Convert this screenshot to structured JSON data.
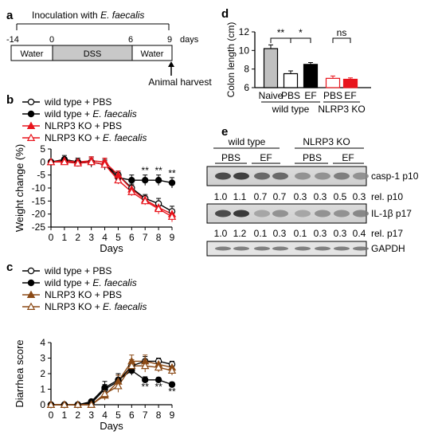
{
  "panels": [
    "a",
    "b",
    "c",
    "d",
    "e"
  ],
  "panel_a": {
    "inoculation": "Inoculation with ",
    "species": "E. faecalis",
    "timeline_ticks": [
      "-14",
      "0",
      "6",
      "9"
    ],
    "days_label": "days",
    "segments": [
      "Water",
      "DSS",
      "Water"
    ],
    "harvest": "Animal harvest"
  },
  "legend_b": [
    {
      "label": "wild type + PBS",
      "pre": "wild type + ",
      "ital": "",
      "post": "PBS",
      "color": "#000000",
      "marker": "open-circle"
    },
    {
      "label": "wild type + E. faecalis",
      "pre": "wild type + ",
      "ital": "E. faecalis",
      "post": "",
      "color": "#000000",
      "marker": "filled-circle"
    },
    {
      "label": "NLRP3 KO + PBS",
      "pre": "NLRP3 KO + ",
      "ital": "",
      "post": "PBS",
      "color": "#e8141c",
      "marker": "filled-triangle"
    },
    {
      "label": "NLRP3 KO + E. faecalis",
      "pre": "NLRP3 KO + ",
      "ital": "E. faecalis",
      "post": "",
      "color": "#e8141c",
      "marker": "open-triangle"
    }
  ],
  "legend_c": [
    {
      "label": "wild type + PBS",
      "pre": "wild type + ",
      "ital": "",
      "post": "PBS",
      "color": "#000000",
      "marker": "open-circle"
    },
    {
      "label": "wild type + E. faecalis",
      "pre": "wild type + ",
      "ital": "E. faecalis",
      "post": "",
      "color": "#000000",
      "marker": "filled-circle"
    },
    {
      "label": "NLRP3 KO + PBS",
      "pre": "NLRP3 KO + ",
      "ital": "",
      "post": "PBS",
      "color": "#8b4a16",
      "marker": "filled-triangle"
    },
    {
      "label": "NLRP3 KO + E. faecalis",
      "pre": "NLRP3 KO + ",
      "ital": "E. faecalis",
      "post": "",
      "color": "#8b4a16",
      "marker": "open-triangle"
    }
  ],
  "chart_data": [
    {
      "id": "b",
      "type": "line",
      "ylabel": "Weight change (%)",
      "xlabel": "Days",
      "x": [
        0,
        1,
        2,
        3,
        4,
        5,
        6,
        7,
        8,
        9
      ],
      "xlim": [
        0,
        9
      ],
      "ylim": [
        -25,
        5
      ],
      "yticks": [
        5,
        0,
        -5,
        -10,
        -15,
        -20,
        -25
      ],
      "series": [
        {
          "name": "wild type + PBS",
          "values": [
            0,
            0.5,
            -0.5,
            0,
            -1,
            -5,
            -10,
            -14,
            -16,
            -19
          ]
        },
        {
          "name": "wild type + E. faecalis",
          "values": [
            0,
            1,
            0,
            0,
            -1,
            -6,
            -7,
            -7,
            -7,
            -8
          ]
        },
        {
          "name": "NLRP3 KO + PBS",
          "values": [
            0,
            0.5,
            0,
            0.5,
            0,
            -5,
            -10.5,
            -14.5,
            -17.5,
            -20
          ]
        },
        {
          "name": "NLRP3 KO + E. faecalis",
          "values": [
            0,
            0,
            -0.5,
            0,
            -1,
            -7,
            -11.5,
            -15,
            -18,
            -21
          ]
        }
      ],
      "errors": [
        [
          0,
          1,
          1,
          1.5,
          1.5,
          1.5,
          1.5,
          1.5,
          2,
          2
        ],
        [
          0,
          1.5,
          1.5,
          2,
          2,
          2,
          2,
          2,
          2,
          2
        ],
        [
          0,
          1,
          1,
          1.5,
          1.5,
          1.5,
          1.5,
          1.5,
          1.5,
          1.5
        ],
        [
          0,
          1,
          1,
          1.5,
          1.5,
          1.5,
          1.5,
          1.5,
          2,
          2
        ]
      ],
      "annotations": [
        {
          "x": 7,
          "text": "**"
        },
        {
          "x": 8,
          "text": "**"
        },
        {
          "x": 9,
          "text": "**"
        }
      ]
    },
    {
      "id": "c",
      "type": "line",
      "ylabel": "Diarrhea score",
      "xlabel": "Days",
      "x": [
        0,
        1,
        2,
        3,
        4,
        5,
        6,
        7,
        8,
        9
      ],
      "xlim": [
        0,
        9
      ],
      "ylim": [
        0,
        4
      ],
      "yticks": [
        4,
        3,
        2,
        1,
        0
      ],
      "series": [
        {
          "name": "wild type + PBS",
          "values": [
            0,
            0,
            0,
            0.1,
            1,
            1.5,
            2.5,
            2.8,
            2.8,
            2.6
          ]
        },
        {
          "name": "wild type + E. faecalis",
          "values": [
            0,
            0,
            0,
            0.2,
            1.1,
            1.6,
            2.2,
            1.6,
            1.6,
            1.3
          ]
        },
        {
          "name": "NLRP3 KO + PBS",
          "values": [
            0,
            0,
            0,
            0,
            0.6,
            1.5,
            2.8,
            2.8,
            2.6,
            2.4
          ]
        },
        {
          "name": "NLRP3 KO + E. faecalis",
          "values": [
            0,
            0,
            0,
            0,
            0.7,
            1.2,
            2.5,
            2.5,
            2.4,
            2.2
          ]
        }
      ],
      "errors": [
        [
          0,
          0,
          0,
          0.1,
          0.3,
          0.4,
          0.4,
          0.3,
          0.2,
          0.2
        ],
        [
          0,
          0,
          0,
          0.1,
          0.4,
          0.4,
          0.3,
          0.2,
          0.15,
          0.15
        ],
        [
          0,
          0,
          0,
          0,
          0.3,
          0.4,
          0.4,
          0.4,
          0.3,
          0.3
        ],
        [
          0,
          0,
          0,
          0,
          0.3,
          0.4,
          0.4,
          0.4,
          0.3,
          0.3
        ]
      ],
      "annotations": [
        {
          "x": 7,
          "text": "**"
        },
        {
          "x": 8,
          "text": "**"
        },
        {
          "x": 9,
          "text": "**"
        }
      ]
    },
    {
      "id": "d",
      "type": "bar",
      "ylabel": "Colon length (cm)",
      "categories": [
        "Naive",
        "PBS",
        "EF",
        "PBS",
        "EF"
      ],
      "groups": [
        {
          "label": "wild type",
          "members": [
            0,
            1,
            2
          ]
        },
        {
          "label": "NLRP3 KO",
          "members": [
            3,
            4
          ]
        }
      ],
      "values": [
        10.2,
        7.5,
        8.5,
        7.0,
        6.9
      ],
      "errors": [
        0.4,
        0.3,
        0.2,
        0.25,
        0.15
      ],
      "colors": [
        "#c0c0c0",
        "#ffffff",
        "#000000",
        "#ffffff",
        "#e8141c"
      ],
      "edge_colors": [
        "#000000",
        "#000000",
        "#000000",
        "#e8141c",
        "#e8141c"
      ],
      "ylim": [
        6,
        12
      ],
      "yticks": [
        12,
        10,
        8,
        6
      ],
      "significance": [
        {
          "from": 0,
          "to": 1,
          "text": "**"
        },
        {
          "from": 1,
          "to": 2,
          "text": "*"
        },
        {
          "from": 3,
          "to": 4,
          "text": "ns"
        }
      ]
    }
  ],
  "panel_e": {
    "groups": [
      "wild type",
      "NLRP3 KO"
    ],
    "lanes": [
      "PBS",
      "EF",
      "PBS",
      "EF"
    ],
    "blots": [
      {
        "label": "casp-1 p10"
      },
      {
        "label": "IL-1β p17"
      },
      {
        "label": "GAPDH"
      }
    ],
    "rel_p10": {
      "label": "rel. p10",
      "values": [
        "1.0",
        "1.1",
        "0.7",
        "0.7",
        "0.3",
        "0.3",
        "0.5",
        "0.3"
      ]
    },
    "rel_p17": {
      "label": "rel. p17",
      "values": [
        "1.0",
        "1.2",
        "0.1",
        "0.3",
        "0.1",
        "0.3",
        "0.3",
        "0.4"
      ]
    }
  }
}
